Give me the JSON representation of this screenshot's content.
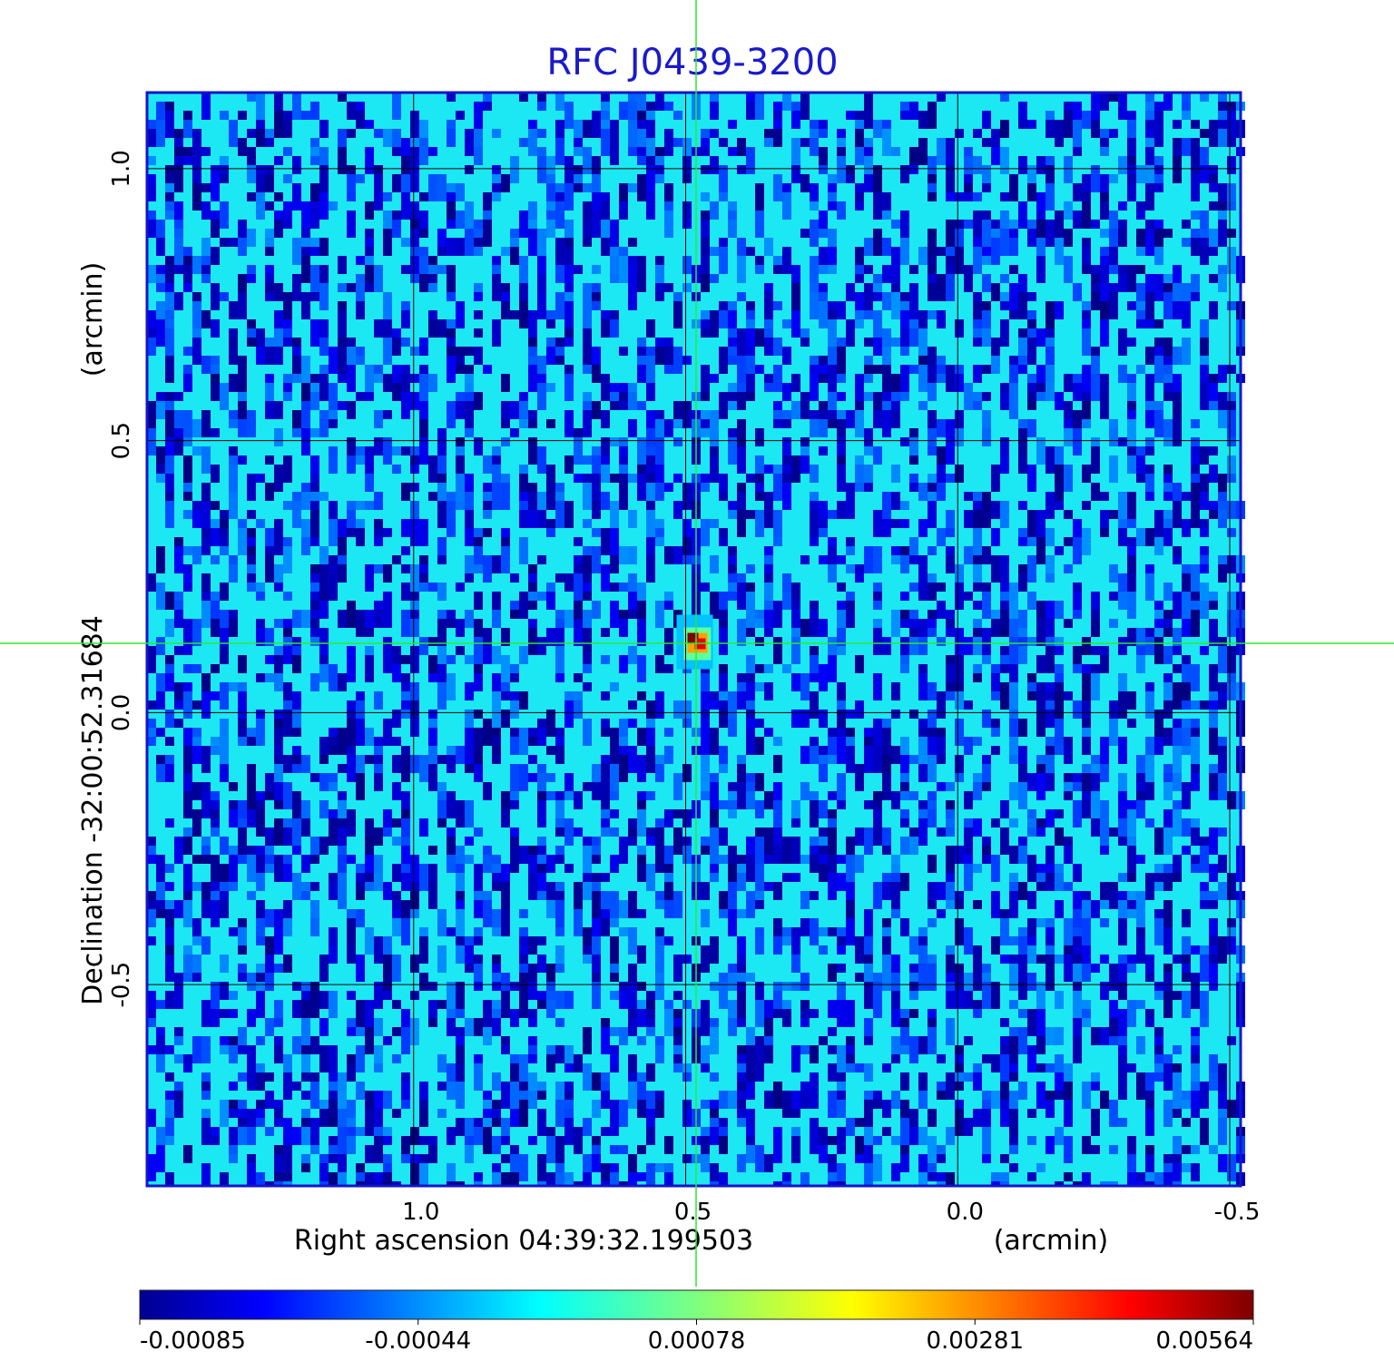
{
  "chart_data": {
    "type": "heatmap",
    "title": "RFC J0439-3200",
    "x_axis": {
      "label": "Right ascension  04:39:32.199503",
      "unit": "(arcmin)",
      "ticks": [
        1.0,
        0.5,
        0.0,
        -0.5
      ],
      "tick_labels": [
        "1.0",
        "0.5",
        "0.0",
        "-0.5"
      ],
      "range": [
        1.49,
        -0.52
      ],
      "reversed": true
    },
    "y_axis": {
      "label": "Declination  -32:00:52.31684",
      "unit": "(arcmin)",
      "ticks": [
        1.0,
        0.5,
        0.0,
        -0.5
      ],
      "tick_labels": [
        "1.0",
        "0.5",
        "0.0",
        "-0.5"
      ],
      "range": [
        -0.87,
        1.14
      ]
    },
    "grid": true,
    "colormap": "jet",
    "colorbar": {
      "orientation": "horizontal",
      "placement": "bottom",
      "range": [
        -0.00085,
        0.00564
      ],
      "tick_labels": [
        "-0.00085",
        "-0.00044",
        "0.00078",
        "0.00281",
        "0.00564"
      ]
    },
    "peak": {
      "x": 0.48,
      "y": 0.13,
      "value": 0.00564
    },
    "crosshair": {
      "x": 0.48,
      "y": 0.13,
      "color": "#2ee82e"
    },
    "noise_background_value": 0.0002
  },
  "colors": {
    "title": "#1a1acc",
    "frame": "#1414c8",
    "grid": "#000000",
    "crosshair": "#2ee82e"
  }
}
